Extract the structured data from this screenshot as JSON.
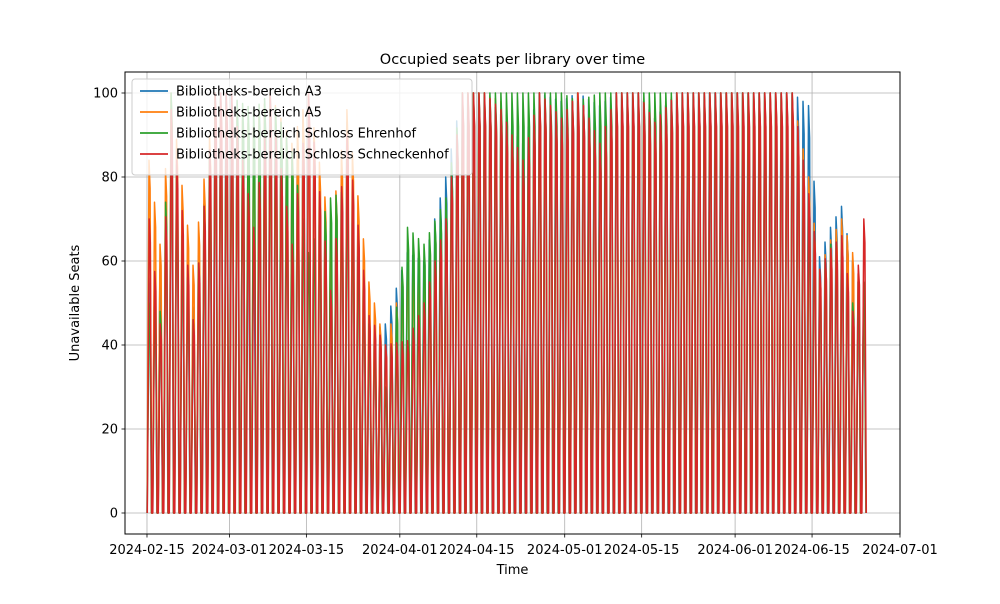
{
  "chart_data": {
    "type": "line",
    "title": "Occupied seats per library over time",
    "xlabel": "Time",
    "ylabel": "Unavailable Seats",
    "xlim": [
      "2024-02-11",
      "2024-07-01"
    ],
    "ylim": [
      -5,
      105
    ],
    "x_ticks": [
      "2024-02-15",
      "2024-03-01",
      "2024-03-15",
      "2024-04-01",
      "2024-04-15",
      "2024-05-01",
      "2024-05-15",
      "2024-06-01",
      "2024-06-15",
      "2024-07-01"
    ],
    "y_ticks": [
      0,
      20,
      40,
      60,
      80,
      100
    ],
    "grid": true,
    "legend_position": "upper-left",
    "series": [
      {
        "name": "Bibliotheks-bereich A3",
        "color": "#1f77b4",
        "x": [
          "2024-02-15",
          "2024-02-17",
          "2024-02-19",
          "2024-02-21",
          "2024-02-23",
          "2024-02-27",
          "2024-03-01",
          "2024-03-05",
          "2024-03-08",
          "2024-03-12",
          "2024-03-15",
          "2024-03-19",
          "2024-03-22",
          "2024-03-26",
          "2024-03-29",
          "2024-04-02",
          "2024-04-05",
          "2024-04-09",
          "2024-04-12",
          "2024-04-16",
          "2024-04-19",
          "2024-04-23",
          "2024-04-26",
          "2024-04-30",
          "2024-05-03",
          "2024-05-07",
          "2024-05-10",
          "2024-05-14",
          "2024-05-17",
          "2024-05-21",
          "2024-05-24",
          "2024-05-28",
          "2024-05-31",
          "2024-06-04",
          "2024-06-07",
          "2024-06-11",
          "2024-06-14",
          "2024-06-16",
          "2024-06-18",
          "2024-06-20",
          "2024-06-22",
          "2024-06-24"
        ],
        "y": [
          56,
          58,
          90,
          66,
          49,
          98,
          100,
          63,
          100,
          81,
          100,
          57,
          93,
          43,
          45,
          62,
          60,
          80,
          100,
          100,
          95,
          88,
          100,
          98,
          100,
          97,
          100,
          100,
          94,
          100,
          100,
          100,
          100,
          100,
          100,
          100,
          97,
          61,
          68,
          73,
          60,
          50
        ]
      },
      {
        "name": "Bibliotheks-bereich A5",
        "color": "#ff7f0e",
        "x": [
          "2024-02-15",
          "2024-02-17",
          "2024-02-19",
          "2024-02-21",
          "2024-02-23",
          "2024-02-27",
          "2024-03-01",
          "2024-03-05",
          "2024-03-08",
          "2024-03-12",
          "2024-03-15",
          "2024-03-19",
          "2024-03-22",
          "2024-03-26",
          "2024-03-29",
          "2024-04-02",
          "2024-04-05",
          "2024-04-09",
          "2024-04-12",
          "2024-04-16",
          "2024-04-19",
          "2024-04-23",
          "2024-04-26",
          "2024-04-30",
          "2024-05-03",
          "2024-05-07",
          "2024-05-10",
          "2024-05-14",
          "2024-05-17",
          "2024-05-21",
          "2024-05-24",
          "2024-05-28",
          "2024-05-31",
          "2024-06-04",
          "2024-06-07",
          "2024-06-11",
          "2024-06-14",
          "2024-06-16",
          "2024-06-18",
          "2024-06-20",
          "2024-06-22",
          "2024-06-24"
        ],
        "y": [
          84,
          64,
          100,
          78,
          59,
          100,
          95,
          92,
          100,
          88,
          100,
          67,
          96,
          55,
          40,
          60,
          55,
          72,
          100,
          100,
          98,
          85,
          100,
          95,
          100,
          90,
          100,
          100,
          96,
          100,
          100,
          100,
          100,
          100,
          100,
          100,
          80,
          58,
          65,
          70,
          62,
          52
        ]
      },
      {
        "name": "Bibliotheks-bereich Schloss Ehrenhof",
        "color": "#2ca02c",
        "x": [
          "2024-02-15",
          "2024-02-17",
          "2024-02-19",
          "2024-02-21",
          "2024-02-23",
          "2024-02-27",
          "2024-03-01",
          "2024-03-05",
          "2024-03-08",
          "2024-03-12",
          "2024-03-15",
          "2024-03-19",
          "2024-03-22",
          "2024-03-26",
          "2024-03-29",
          "2024-04-02",
          "2024-04-05",
          "2024-04-09",
          "2024-04-12",
          "2024-04-16",
          "2024-04-19",
          "2024-04-23",
          "2024-04-26",
          "2024-04-30",
          "2024-05-03",
          "2024-05-07",
          "2024-05-10",
          "2024-05-14",
          "2024-05-17",
          "2024-05-21",
          "2024-05-24",
          "2024-05-28",
          "2024-05-31",
          "2024-06-04",
          "2024-06-07",
          "2024-06-11",
          "2024-06-14",
          "2024-06-16",
          "2024-06-18",
          "2024-06-20",
          "2024-06-22",
          "2024-06-24"
        ],
        "y": [
          50,
          48,
          100,
          66,
          46,
          100,
          99,
          96,
          100,
          86,
          62,
          75,
          77,
          45,
          30,
          68,
          64,
          75,
          100,
          100,
          100,
          100,
          100,
          100,
          98,
          100,
          100,
          100,
          100,
          100,
          100,
          100,
          100,
          100,
          100,
          100,
          70,
          56,
          64,
          62,
          50,
          55
        ]
      },
      {
        "name": "Bibliotheks-bereich Schloss Schneckenhof",
        "color": "#d62728",
        "x": [
          "2024-02-15",
          "2024-02-17",
          "2024-02-19",
          "2024-02-21",
          "2024-02-23",
          "2024-02-27",
          "2024-03-01",
          "2024-03-05",
          "2024-03-08",
          "2024-03-12",
          "2024-03-15",
          "2024-03-19",
          "2024-03-22",
          "2024-03-26",
          "2024-03-29",
          "2024-04-02",
          "2024-04-05",
          "2024-04-09",
          "2024-04-12",
          "2024-04-16",
          "2024-04-19",
          "2024-04-23",
          "2024-04-26",
          "2024-04-30",
          "2024-05-03",
          "2024-05-07",
          "2024-05-10",
          "2024-05-14",
          "2024-05-17",
          "2024-05-21",
          "2024-05-24",
          "2024-05-28",
          "2024-05-31",
          "2024-06-04",
          "2024-06-07",
          "2024-06-11",
          "2024-06-14",
          "2024-06-16",
          "2024-06-18",
          "2024-06-20",
          "2024-06-22",
          "2024-06-24"
        ],
        "y": [
          70,
          45,
          96,
          72,
          46,
          100,
          100,
          68,
          100,
          64,
          100,
          53,
          90,
          47,
          40,
          41,
          50,
          70,
          100,
          100,
          96,
          84,
          100,
          94,
          100,
          88,
          100,
          100,
          93,
          100,
          100,
          100,
          100,
          100,
          100,
          100,
          76,
          58,
          63,
          66,
          48,
          70
        ]
      }
    ]
  }
}
